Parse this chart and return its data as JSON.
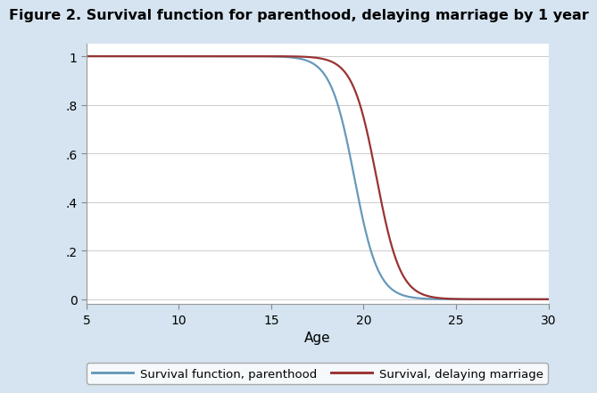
{
  "title": "Figure 2. Survival function for parenthood, delaying marriage by 1 year",
  "xlabel": "Age",
  "xlim": [
    5,
    30
  ],
  "ylim": [
    -0.02,
    1.05
  ],
  "xticks": [
    5,
    10,
    15,
    20,
    25,
    30
  ],
  "yticks": [
    0,
    0.2,
    0.4,
    0.6,
    0.8,
    1.0
  ],
  "ytick_labels": [
    "0",
    ".2",
    ".4",
    ".6",
    ".8",
    "1"
  ],
  "outer_bg_color": "#d5e4f0",
  "plot_bg_color": "#ffffff",
  "line1_color": "#6699bb",
  "line2_color": "#993333",
  "line1_label": "Survival function, parenthood",
  "line2_label": "Survival, delaying marriage",
  "line_width": 1.6,
  "title_fontsize": 11.5,
  "axis_fontsize": 10,
  "legend_fontsize": 9.5,
  "grid_color": "#cccccc",
  "s1_midpoint": 19.5,
  "s1_steepness": 1.55,
  "s2_midpoint": 20.7,
  "s2_steepness": 1.55
}
